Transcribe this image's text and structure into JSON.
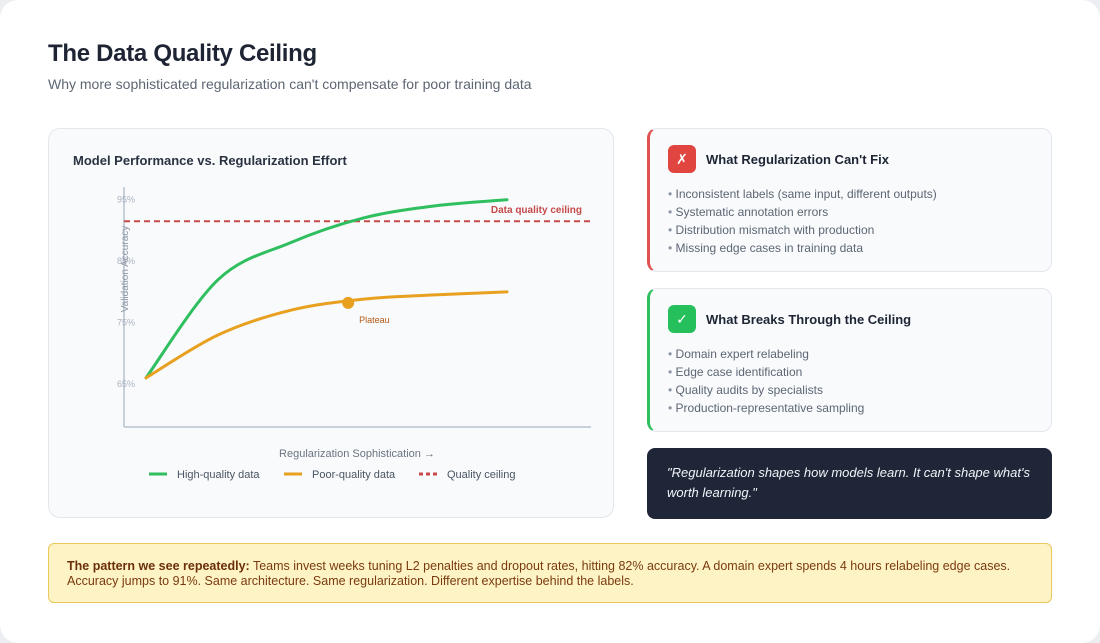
{
  "header": {
    "title": "The Data Quality Ceiling",
    "subtitle": "Why more sophisticated regularization can't compensate for poor training data"
  },
  "chart_data": {
    "type": "line",
    "title": "Model Performance vs. Regularization Effort",
    "xlabel": "Regularization Sophistication →",
    "ylabel": "Validation Accuracy",
    "ylim": [
      58,
      100
    ],
    "yticks": [
      {
        "value": 95,
        "label": "95%"
      },
      {
        "value": 85,
        "label": "85%"
      },
      {
        "value": 75,
        "label": "75%"
      },
      {
        "value": 65,
        "label": "65%"
      }
    ],
    "x": [
      0,
      1,
      2,
      3,
      4,
      5
    ],
    "series": [
      {
        "name": "High-quality data",
        "color": "#2fbf5f",
        "values": [
          66,
          82,
          88,
          92,
          94,
          95
        ]
      },
      {
        "name": "Poor-quality data",
        "color": "#e8a020",
        "values": [
          66,
          73,
          77,
          78.8,
          79.5,
          80
        ]
      }
    ],
    "ceiling": {
      "name": "Quality ceiling",
      "value": 91.5,
      "color": "#c64a4a",
      "label": "Data quality ceiling"
    },
    "annotations": [
      {
        "series": 1,
        "x": 2.8,
        "y": 78.2,
        "text": "Plateau"
      }
    ],
    "grid": false,
    "legend_position": "bottom"
  },
  "cant_fix": {
    "icon": "x-icon",
    "badge": "✗",
    "title": "What Regularization Can't Fix",
    "items": [
      "Inconsistent labels (same input, different outputs)",
      "Systematic annotation errors",
      "Distribution mismatch with production",
      "Missing edge cases in training data"
    ]
  },
  "breaks_through": {
    "icon": "check-icon",
    "badge": "✓",
    "title": "What Breaks Through the Ceiling",
    "items": [
      "Domain expert relabeling",
      "Edge case identification",
      "Quality audits by specialists",
      "Production-representative sampling"
    ]
  },
  "quote": {
    "text": "\"Regularization shapes how models learn. It can't shape what's worth learning.\""
  },
  "pattern": {
    "lead": "The pattern we see repeatedly:",
    "body": "Teams invest weeks tuning L2 penalties and dropout rates, hitting 82% accuracy. A domain expert spends 4 hours relabeling edge cases. Accuracy jumps to 91%. Same architecture. Same regularization. Different expertise behind the labels."
  }
}
